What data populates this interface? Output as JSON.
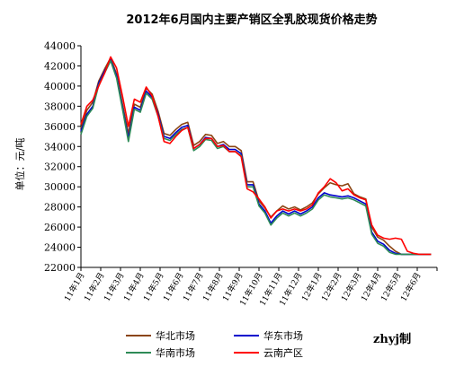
{
  "chart_data": {
    "type": "line",
    "title": "2012年6月国内主要产销区全乳胶现货价格走势",
    "ylabel": "单位：元/吨",
    "xlabel": "",
    "ylim": [
      22000,
      44000
    ],
    "y_ticks": [
      22000,
      24000,
      26000,
      28000,
      30000,
      32000,
      34000,
      36000,
      38000,
      40000,
      42000,
      44000
    ],
    "x_ticks": [
      "11年1月",
      "11年2月",
      "11年3月",
      "11年4月",
      "11年5月",
      "11年6月",
      "11年7月",
      "11年8月",
      "11年9月",
      "11年10月",
      "11年11月",
      "11年12月",
      "12年1月",
      "12年2月",
      "12年3月",
      "12年4月",
      "12年5月",
      "12年6月"
    ],
    "grid": false,
    "legend_position": "bottom",
    "credit": "zhyj制",
    "x": [
      0,
      0.3,
      0.6,
      0.9,
      1.2,
      1.5,
      1.8,
      2.1,
      2.4,
      2.7,
      3.0,
      3.3,
      3.6,
      3.9,
      4.2,
      4.5,
      4.8,
      5.1,
      5.4,
      5.7,
      6.0,
      6.3,
      6.6,
      6.9,
      7.2,
      7.5,
      7.8,
      8.1,
      8.4,
      8.7,
      9.0,
      9.3,
      9.6,
      9.9,
      10.2,
      10.5,
      10.8,
      11.1,
      11.4,
      11.7,
      12.0,
      12.3,
      12.6,
      12.9,
      13.2,
      13.5,
      13.8,
      14.1,
      14.4,
      14.7,
      15.0,
      15.3,
      15.6,
      15.9,
      16.2,
      16.5,
      16.8,
      17.1,
      17.4,
      17.7
    ],
    "series": [
      {
        "name": "华北市场",
        "color": "#8B4513",
        "values": [
          35800,
          37600,
          38400,
          40500,
          41700,
          42800,
          41200,
          38200,
          35300,
          38200,
          37900,
          39800,
          39200,
          37500,
          35300,
          35100,
          35700,
          36200,
          36400,
          34100,
          34500,
          35200,
          35100,
          34300,
          34500,
          34000,
          34000,
          33600,
          30500,
          30500,
          28600,
          27900,
          27000,
          27600,
          28100,
          27800,
          28000,
          27700,
          28000,
          28400,
          29300,
          29900,
          30400,
          30200,
          30100,
          30300,
          29300,
          29000,
          28800,
          26000,
          25000,
          24700,
          24100,
          23600,
          23300,
          23300,
          23300,
          23300,
          23300,
          23300
        ]
      },
      {
        "name": "华东市场",
        "color": "#0000CD",
        "values": [
          35500,
          37200,
          38000,
          40300,
          41500,
          42600,
          41000,
          37900,
          34800,
          37900,
          37600,
          39500,
          38900,
          37200,
          35000,
          34800,
          35400,
          35900,
          36100,
          33800,
          34200,
          34900,
          34800,
          34000,
          34200,
          33700,
          33700,
          33300,
          30200,
          30200,
          28300,
          27600,
          26400,
          27100,
          27600,
          27300,
          27600,
          27300,
          27600,
          28000,
          28900,
          29400,
          29200,
          29100,
          29000,
          29100,
          28900,
          28600,
          28300,
          25500,
          24600,
          24300,
          23700,
          23400,
          23300,
          23300,
          23300,
          23300,
          23300,
          23300
        ]
      },
      {
        "name": "华南市场",
        "color": "#2E8B57",
        "values": [
          35200,
          37000,
          37800,
          40100,
          41300,
          42500,
          40800,
          37700,
          34500,
          37700,
          37400,
          39300,
          38700,
          37000,
          34800,
          34600,
          35200,
          35700,
          35900,
          33600,
          34000,
          34700,
          34600,
          33800,
          34000,
          33500,
          33500,
          33100,
          30000,
          30000,
          28100,
          27400,
          26200,
          26900,
          27400,
          27100,
          27400,
          27100,
          27400,
          27800,
          28700,
          29200,
          29000,
          28900,
          28800,
          28900,
          28700,
          28400,
          28100,
          25300,
          24400,
          24100,
          23500,
          23300,
          23300,
          23300,
          23300,
          23300,
          23300,
          23300
        ]
      },
      {
        "name": "云南产区",
        "color": "#FF0000",
        "values": [
          36200,
          38000,
          38600,
          40000,
          41300,
          42900,
          41800,
          39000,
          36000,
          38700,
          38400,
          39900,
          39000,
          37000,
          34500,
          34300,
          35000,
          35600,
          35900,
          33800,
          34200,
          34800,
          34800,
          34000,
          34100,
          33500,
          33500,
          33000,
          29800,
          29500,
          28800,
          28000,
          26900,
          27600,
          27800,
          27600,
          27800,
          27600,
          27800,
          28200,
          29400,
          30000,
          30800,
          30400,
          29600,
          29800,
          29200,
          28900,
          28700,
          26200,
          25200,
          24900,
          24800,
          24900,
          24800,
          23600,
          23400,
          23300,
          23300,
          23300
        ]
      }
    ]
  }
}
